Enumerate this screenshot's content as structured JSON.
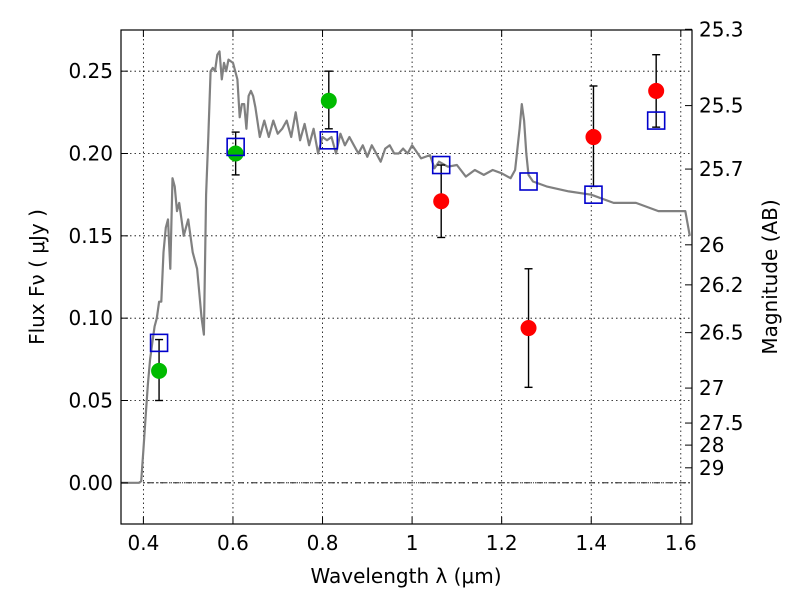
{
  "chart_data": {
    "type": "scatter",
    "xlabel": "Wavelength  λ (μm)",
    "ylabel": "Flux  Fν  ( μJy )",
    "y2label": "Magnitude (AB)",
    "xlim": [
      0.35,
      1.625
    ],
    "ylim": [
      -0.025,
      0.275
    ],
    "xticks": [
      {
        "v": 0.4,
        "label": "0.4"
      },
      {
        "v": 0.6,
        "label": "0.6"
      },
      {
        "v": 0.8,
        "label": "0.8"
      },
      {
        "v": 1.0,
        "label": "1"
      },
      {
        "v": 1.2,
        "label": "1.2"
      },
      {
        "v": 1.4,
        "label": "1.4"
      },
      {
        "v": 1.6,
        "label": "1.6"
      }
    ],
    "yticks": [
      {
        "v": 0.0,
        "label": "0.00"
      },
      {
        "v": 0.05,
        "label": "0.05"
      },
      {
        "v": 0.1,
        "label": "0.10"
      },
      {
        "v": 0.15,
        "label": "0.15"
      },
      {
        "v": 0.2,
        "label": "0.20"
      },
      {
        "v": 0.25,
        "label": "0.25"
      }
    ],
    "y2ticks": [
      {
        "v": 25.3,
        "label": "25.3"
      },
      {
        "v": 25.5,
        "label": "25.5"
      },
      {
        "v": 25.7,
        "label": "25.7"
      },
      {
        "v": 26.0,
        "label": "26"
      },
      {
        "v": 26.2,
        "label": "26.2"
      },
      {
        "v": 26.5,
        "label": "26.5"
      },
      {
        "v": 27.0,
        "label": "27"
      },
      {
        "v": 27.5,
        "label": "27.5"
      },
      {
        "v": 28.0,
        "label": "28"
      },
      {
        "v": 29.0,
        "label": "29"
      }
    ],
    "grid": true,
    "colors": {
      "sed": "#808080",
      "green": "#00bb00",
      "red": "#ff0000",
      "model": "#0000cc",
      "errorbar": "#000000"
    },
    "sed_line": {
      "x": [
        0.35,
        0.39,
        0.395,
        0.4,
        0.405,
        0.41,
        0.415,
        0.42,
        0.425,
        0.43,
        0.435,
        0.44,
        0.445,
        0.45,
        0.455,
        0.46,
        0.465,
        0.47,
        0.475,
        0.48,
        0.485,
        0.49,
        0.5,
        0.51,
        0.52,
        0.53,
        0.535,
        0.54,
        0.545,
        0.55,
        0.555,
        0.56,
        0.565,
        0.57,
        0.575,
        0.58,
        0.585,
        0.59,
        0.6,
        0.61,
        0.615,
        0.62,
        0.625,
        0.63,
        0.635,
        0.64,
        0.645,
        0.65,
        0.66,
        0.67,
        0.68,
        0.69,
        0.7,
        0.71,
        0.72,
        0.73,
        0.74,
        0.75,
        0.76,
        0.77,
        0.78,
        0.79,
        0.8,
        0.81,
        0.82,
        0.83,
        0.84,
        0.85,
        0.86,
        0.87,
        0.88,
        0.89,
        0.9,
        0.91,
        0.92,
        0.93,
        0.94,
        0.95,
        0.96,
        0.97,
        0.98,
        0.99,
        1.0,
        1.02,
        1.04,
        1.05,
        1.06,
        1.08,
        1.1,
        1.12,
        1.14,
        1.16,
        1.18,
        1.2,
        1.22,
        1.23,
        1.24,
        1.245,
        1.25,
        1.255,
        1.26,
        1.27,
        1.3,
        1.35,
        1.4,
        1.45,
        1.5,
        1.55,
        1.6,
        1.61,
        1.62
      ],
      "y": [
        0.0,
        0.0,
        0.001,
        0.02,
        0.04,
        0.06,
        0.075,
        0.085,
        0.095,
        0.1,
        0.11,
        0.11,
        0.14,
        0.155,
        0.16,
        0.13,
        0.185,
        0.18,
        0.165,
        0.17,
        0.16,
        0.15,
        0.16,
        0.14,
        0.13,
        0.1,
        0.09,
        0.175,
        0.21,
        0.25,
        0.252,
        0.25,
        0.26,
        0.262,
        0.245,
        0.255,
        0.25,
        0.257,
        0.255,
        0.245,
        0.222,
        0.23,
        0.23,
        0.215,
        0.235,
        0.238,
        0.235,
        0.228,
        0.21,
        0.22,
        0.21,
        0.22,
        0.212,
        0.215,
        0.22,
        0.21,
        0.225,
        0.208,
        0.218,
        0.205,
        0.215,
        0.2,
        0.21,
        0.208,
        0.21,
        0.2,
        0.212,
        0.205,
        0.21,
        0.205,
        0.2,
        0.205,
        0.198,
        0.205,
        0.2,
        0.195,
        0.203,
        0.205,
        0.2,
        0.2,
        0.203,
        0.2,
        0.205,
        0.197,
        0.199,
        0.191,
        0.195,
        0.192,
        0.193,
        0.186,
        0.19,
        0.187,
        0.19,
        0.188,
        0.185,
        0.19,
        0.215,
        0.23,
        0.22,
        0.2,
        0.187,
        0.183,
        0.18,
        0.177,
        0.175,
        0.17,
        0.17,
        0.165,
        0.165,
        0.165,
        0.15
      ]
    },
    "series": [
      {
        "points": [
          {
            "x": 0.435,
            "y": 0.068,
            "err_low": 0.05,
            "err_high": 0.087
          },
          {
            "x": 0.606,
            "y": 0.2,
            "err_low": 0.187,
            "err_high": 0.213
          },
          {
            "x": 0.814,
            "y": 0.232,
            "err_low": 0.215,
            "err_high": 0.25
          }
        ]
      },
      {
        "points": [
          {
            "x": 1.065,
            "y": 0.171,
            "err_low": 0.149,
            "err_high": 0.193
          },
          {
            "x": 1.26,
            "y": 0.094,
            "err_low": 0.058,
            "err_high": 0.13
          },
          {
            "x": 1.405,
            "y": 0.21,
            "err_low": 0.18,
            "err_high": 0.241
          },
          {
            "x": 1.545,
            "y": 0.238,
            "err_low": 0.216,
            "err_high": 0.26
          }
        ]
      },
      {
        "points": [
          {
            "x": 0.435,
            "y": 0.085
          },
          {
            "x": 0.606,
            "y": 0.204
          },
          {
            "x": 0.814,
            "y": 0.208
          },
          {
            "x": 1.065,
            "y": 0.193
          },
          {
            "x": 1.26,
            "y": 0.183
          },
          {
            "x": 1.405,
            "y": 0.175
          },
          {
            "x": 1.545,
            "y": 0.22
          }
        ]
      }
    ]
  }
}
